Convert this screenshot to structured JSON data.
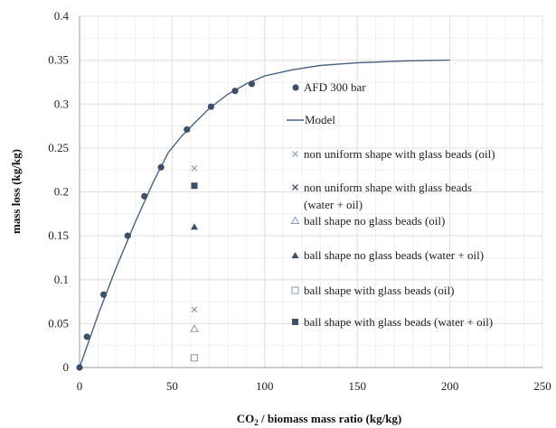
{
  "chart_data": {
    "type": "scatter",
    "xlabel_main": "CO",
    "xlabel_sub": "2",
    "xlabel_rest": " / biomass mass ratio (kg/kg)",
    "ylabel": "mass loss (kg/kg)",
    "xlim": [
      0,
      250
    ],
    "ylim": [
      0,
      0.4
    ],
    "x_ticks": [
      "0",
      "50",
      "100",
      "150",
      "200",
      "250"
    ],
    "y_ticks": [
      "0",
      "0.05",
      "0.1",
      "0.15",
      "0.2",
      "0.25",
      "0.3",
      "0.35",
      "0.4"
    ],
    "grid": true,
    "legend_position": "right-inside",
    "colors": {
      "marker": "#3d5068",
      "light_marker": "#8a97a8",
      "model": "#4a6282",
      "grid": "#e2e2e2"
    },
    "series": [
      {
        "name": "AFD 300 bar",
        "marker": "circle",
        "points": [
          [
            0,
            0
          ],
          [
            4,
            0.035
          ],
          [
            13,
            0.083
          ],
          [
            26,
            0.15
          ],
          [
            35,
            0.195
          ],
          [
            44,
            0.228
          ],
          [
            58,
            0.271
          ],
          [
            71,
            0.297
          ],
          [
            84,
            0.315
          ],
          [
            93,
            0.323
          ]
        ]
      },
      {
        "name": "Model",
        "marker": "line",
        "points": [
          [
            0,
            0
          ],
          [
            10,
            0.06
          ],
          [
            20,
            0.115
          ],
          [
            30,
            0.165
          ],
          [
            40,
            0.212
          ],
          [
            48,
            0.245
          ],
          [
            55,
            0.263
          ],
          [
            60,
            0.274
          ],
          [
            70,
            0.295
          ],
          [
            80,
            0.311
          ],
          [
            90,
            0.323
          ],
          [
            100,
            0.332
          ],
          [
            115,
            0.339
          ],
          [
            130,
            0.344
          ],
          [
            150,
            0.347
          ],
          [
            175,
            0.349
          ],
          [
            200,
            0.35
          ]
        ]
      },
      {
        "name": "non uniform shape with glass beads (oil)",
        "marker": "x-light",
        "points": [
          [
            62,
            0.227
          ]
        ]
      },
      {
        "name": "non uniform shape with glass beads (water + oil)",
        "name_line1": "non uniform shape with glass beads",
        "name_line2": "(water + oil)",
        "marker": "x",
        "points": [
          [
            62,
            0.066
          ]
        ]
      },
      {
        "name": "ball shape no glass beads (oil)",
        "marker": "triangle-open",
        "points": [
          [
            62,
            0.044
          ]
        ]
      },
      {
        "name": "ball shape no glass beads (water + oil)",
        "marker": "triangle",
        "points": [
          [
            62,
            0.16
          ]
        ]
      },
      {
        "name": "ball shape with glass beads (oil)",
        "marker": "square-open",
        "points": [
          [
            62,
            0.011
          ]
        ]
      },
      {
        "name": "ball shape with glass beads (water + oil)",
        "marker": "square",
        "points": [
          [
            62,
            0.207
          ]
        ]
      }
    ]
  }
}
